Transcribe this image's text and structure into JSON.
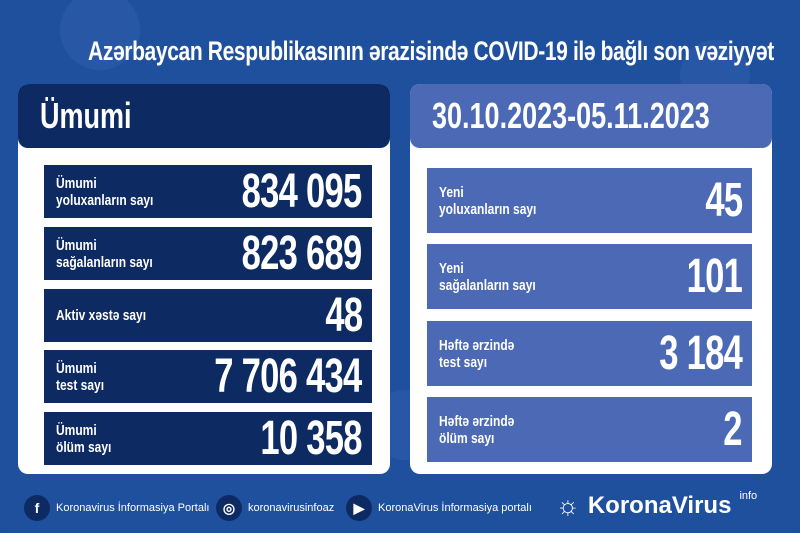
{
  "title": "Azərbaycan Respublikasının ərazisində COVID-19 ilə bağlı son vəziyyət",
  "left": {
    "header": "Ümumi",
    "rows": [
      {
        "label1": "Ümumi",
        "label2": "yoluxanların sayı",
        "value": "834 095"
      },
      {
        "label1": "Ümumi",
        "label2": "sağalanların sayı",
        "value": "823 689"
      },
      {
        "label1": "Aktiv xəstə sayı",
        "label2": "",
        "value": "48"
      },
      {
        "label1": "Ümumi",
        "label2": "test sayı",
        "value": "7 706 434"
      },
      {
        "label1": "Ümumi",
        "label2": "ölüm sayı",
        "value": "10 358"
      }
    ]
  },
  "right": {
    "header": "30.10.2023-05.11.2023",
    "rows": [
      {
        "label1": "Yeni",
        "label2": "yoluxanların sayı",
        "value": "45"
      },
      {
        "label1": "Yeni",
        "label2": "sağalanların sayı",
        "value": "101"
      },
      {
        "label1": "Həftə ərzində",
        "label2": "test sayı",
        "value": "3 184"
      },
      {
        "label1": "Həftə ərzində",
        "label2": "ölüm sayı",
        "value": "2"
      }
    ]
  },
  "footer": {
    "facebook": "Koronavirus İnformasiya Portalı",
    "instagram": "koronavirusinfoaz",
    "youtube": "KoronaVirus İnformasiya portalı",
    "brand": "KoronaVirus",
    "brand_sup": "info"
  },
  "colors": {
    "background": "#1f509e",
    "navy": "#0e2a62",
    "accent": "#4b69b5"
  }
}
